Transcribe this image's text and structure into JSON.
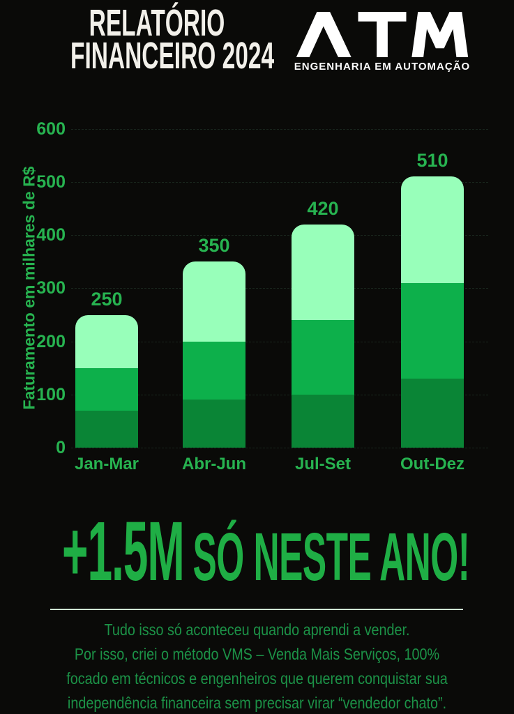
{
  "header": {
    "title_line1": "RELATÓRIO",
    "title_line2": "FINANCEIRO 2024",
    "logo_name": "ATM",
    "logo_tagline": "ENGENHARIA EM AUTOMAÇÃO"
  },
  "chart_data": {
    "type": "bar",
    "stacked": true,
    "title": "",
    "xlabel": "",
    "ylabel": "Faturamento em milhares de R$",
    "categories": [
      "Jan-Mar",
      "Abr-Jun",
      "Jul-Set",
      "Out-Dez"
    ],
    "series": [
      {
        "name": "faixa-inferior",
        "color": "#0A8536",
        "values": [
          70,
          90,
          100,
          130
        ]
      },
      {
        "name": "faixa-media",
        "color": "#0DB04B",
        "values": [
          80,
          110,
          140,
          180
        ]
      },
      {
        "name": "faixa-superior",
        "color": "#98FFBA",
        "values": [
          100,
          150,
          180,
          200
        ]
      }
    ],
    "totals": [
      250,
      350,
      420,
      510
    ],
    "total_labels": [
      "250",
      "350",
      "420",
      "510"
    ],
    "ylim": [
      0,
      600
    ],
    "yticks": [
      0,
      100,
      200,
      300,
      400,
      500,
      600
    ],
    "grid": true,
    "legend": "none"
  },
  "highlight": {
    "value": "+1.5M",
    "caption": "SÓ NESTE ANO!"
  },
  "footer": {
    "lines": [
      "Tudo isso só aconteceu quando aprendi a vender.",
      "Por isso, criei o método VMS – Venda Mais Serviços, 100%",
      "focado em técnicos e engenheiros que querem conquistar sua",
      "independência financeira sem precisar virar “vendedor chato”."
    ]
  },
  "colors": {
    "background": "#0A0A08",
    "title_text": "#F2F0EA",
    "logo_white": "#FFFFFF",
    "chart_green": "#27B350",
    "headline_green": "#1FAE45",
    "footer_green": "#1C9247",
    "divider": "#CFE7D4",
    "bar_light": "#98FFBA",
    "bar_mid": "#0DB04B",
    "bar_dark": "#0A8536"
  }
}
